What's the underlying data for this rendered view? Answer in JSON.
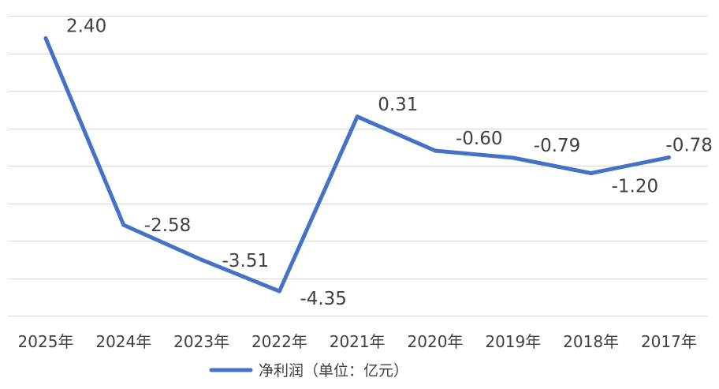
{
  "chart_data": {
    "type": "line",
    "categories": [
      "2025年",
      "2024年",
      "2023年",
      "2022年",
      "2021年",
      "2020年",
      "2019年",
      "2018年",
      "2017年"
    ],
    "series": [
      {
        "name": "净利润（单位：亿元）",
        "values": [
          2.4,
          -2.58,
          -3.51,
          -4.35,
          0.31,
          -0.6,
          -0.79,
          -1.2,
          -0.78
        ],
        "labels": [
          "2.40",
          "-2.58",
          "-3.51",
          "-4.35",
          "0.31",
          "-0.60",
          "-0.79",
          "-1.20",
          "-0.78"
        ],
        "color": "#4472c4"
      }
    ],
    "ylim": [
      -5,
      3
    ],
    "grid": true,
    "legend": "bottom-center"
  }
}
